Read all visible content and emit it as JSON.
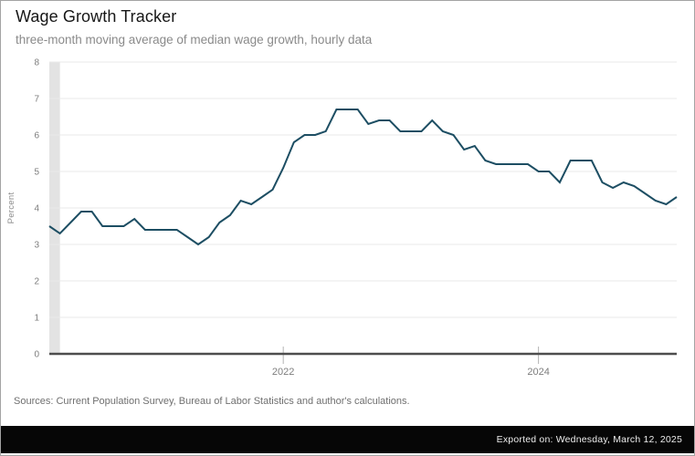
{
  "header": {
    "title": "Wage Growth Tracker",
    "subtitle": "three-month moving average of median wage growth, hourly data"
  },
  "chart_data": {
    "type": "line",
    "title": "Wage Growth Tracker",
    "subtitle": "three-month moving average of median wage growth, hourly data",
    "ylabel": "Percent",
    "ylim": [
      0,
      8
    ],
    "yticks": [
      0,
      1,
      2,
      3,
      4,
      5,
      6,
      7,
      8
    ],
    "grid": true,
    "legend": false,
    "x_months": [
      "2020-03",
      "2020-04",
      "2020-05",
      "2020-06",
      "2020-07",
      "2020-08",
      "2020-09",
      "2020-10",
      "2020-11",
      "2020-12",
      "2021-01",
      "2021-02",
      "2021-03",
      "2021-04",
      "2021-05",
      "2021-06",
      "2021-07",
      "2021-08",
      "2021-09",
      "2021-10",
      "2021-11",
      "2021-12",
      "2022-01",
      "2022-02",
      "2022-03",
      "2022-04",
      "2022-05",
      "2022-06",
      "2022-07",
      "2022-08",
      "2022-09",
      "2022-10",
      "2022-11",
      "2022-12",
      "2023-01",
      "2023-02",
      "2023-03",
      "2023-04",
      "2023-05",
      "2023-06",
      "2023-07",
      "2023-08",
      "2023-09",
      "2023-10",
      "2023-11",
      "2023-12",
      "2024-01",
      "2024-02",
      "2024-03",
      "2024-04",
      "2024-05",
      "2024-06",
      "2024-07",
      "2024-08",
      "2024-09",
      "2024-10",
      "2024-11",
      "2024-12",
      "2025-01",
      "2025-02"
    ],
    "series": [
      {
        "name": "median wage growth, 3-month moving average (hourly)",
        "values": [
          3.5,
          3.3,
          3.6,
          3.9,
          3.9,
          3.5,
          3.5,
          3.5,
          3.7,
          3.4,
          3.4,
          3.4,
          3.4,
          3.2,
          3.0,
          3.2,
          3.6,
          3.8,
          4.2,
          4.1,
          4.3,
          4.5,
          5.1,
          5.8,
          6.0,
          6.0,
          6.1,
          6.7,
          6.7,
          6.7,
          6.3,
          6.4,
          6.4,
          6.1,
          6.1,
          6.1,
          6.4,
          6.1,
          6.0,
          5.6,
          5.7,
          5.3,
          5.2,
          5.2,
          5.2,
          5.2,
          5.0,
          5.0,
          4.7,
          5.3,
          5.3,
          5.3,
          4.7,
          4.55,
          4.7,
          4.6,
          4.4,
          4.2,
          4.1,
          4.3
        ]
      }
    ],
    "xticks": [
      {
        "index": 22,
        "label": "2022"
      },
      {
        "index": 46,
        "label": "2024"
      }
    ],
    "shaded_region": {
      "name": "recession-band",
      "start_index": 0,
      "end_index": 1
    },
    "colors": {
      "line": "#1d4e63",
      "recession_band": "#e3e3e3",
      "grid": "#e9e9e9",
      "axis": "#4d4d4d",
      "export_bar_bg": "#060606"
    }
  },
  "footer": {
    "sources": "Sources: Current Population Survey, Bureau of Labor Statistics and author's calculations.",
    "exported": "Exported on: Wednesday, March 12, 2025"
  }
}
